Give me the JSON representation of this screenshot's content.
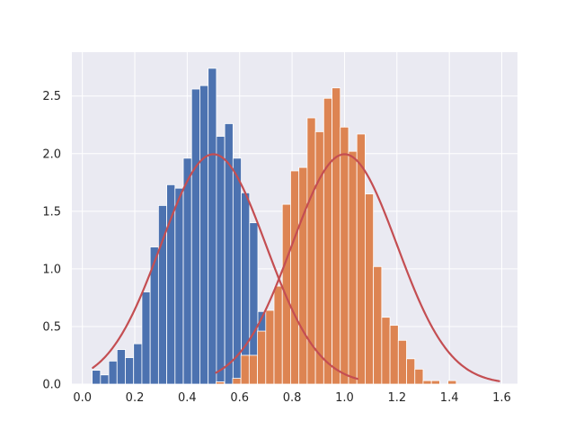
{
  "chart_data": {
    "type": "histogram",
    "xlim": [
      -0.04,
      1.66
    ],
    "ylim": [
      0,
      2.88
    ],
    "grid": true,
    "background": "#eaeaf2",
    "grid_color": "#ffffff",
    "x_ticks": [
      0.0,
      0.2,
      0.4,
      0.6,
      0.8,
      1.0,
      1.2,
      1.4,
      1.6
    ],
    "x_tick_labels": [
      "0.0",
      "0.2",
      "0.4",
      "0.6",
      "0.8",
      "1.0",
      "1.2",
      "1.4",
      "1.6"
    ],
    "y_ticks": [
      0.0,
      0.5,
      1.0,
      1.5,
      2.0,
      2.5
    ],
    "y_tick_labels": [
      "0.0",
      "0.5",
      "1.0",
      "1.5",
      "2.0",
      "2.5"
    ],
    "series": [
      {
        "color": "#4c72b0",
        "bin_start": 0.0375,
        "bin_width": 0.0316,
        "values": [
          0.12,
          0.08,
          0.2,
          0.3,
          0.23,
          0.35,
          0.8,
          1.19,
          1.55,
          1.73,
          1.7,
          1.96,
          2.56,
          2.59,
          2.74,
          2.15,
          2.26,
          1.96,
          1.66,
          1.4,
          0.63,
          0.39,
          0.29
        ]
      },
      {
        "color": "#dd8452",
        "bin_start": 0.51,
        "bin_width": 0.0316,
        "values": [
          0.02,
          0.0,
          0.05,
          0.25,
          0.25,
          0.46,
          0.64,
          0.85,
          1.56,
          1.85,
          1.88,
          2.31,
          2.19,
          2.48,
          2.57,
          2.23,
          2.02,
          2.17,
          1.65,
          1.02,
          0.58,
          0.51,
          0.38,
          0.22,
          0.13,
          0.03,
          0.03,
          0.0,
          0.03
        ]
      }
    ],
    "curves": [
      {
        "color": "#c44e52",
        "mu": 0.5,
        "sigma": 0.2,
        "x_start": 0.04,
        "x_end": 1.05
      },
      {
        "color": "#c44e52",
        "mu": 1.0,
        "sigma": 0.2,
        "x_start": 0.51,
        "x_end": 1.59
      }
    ]
  }
}
